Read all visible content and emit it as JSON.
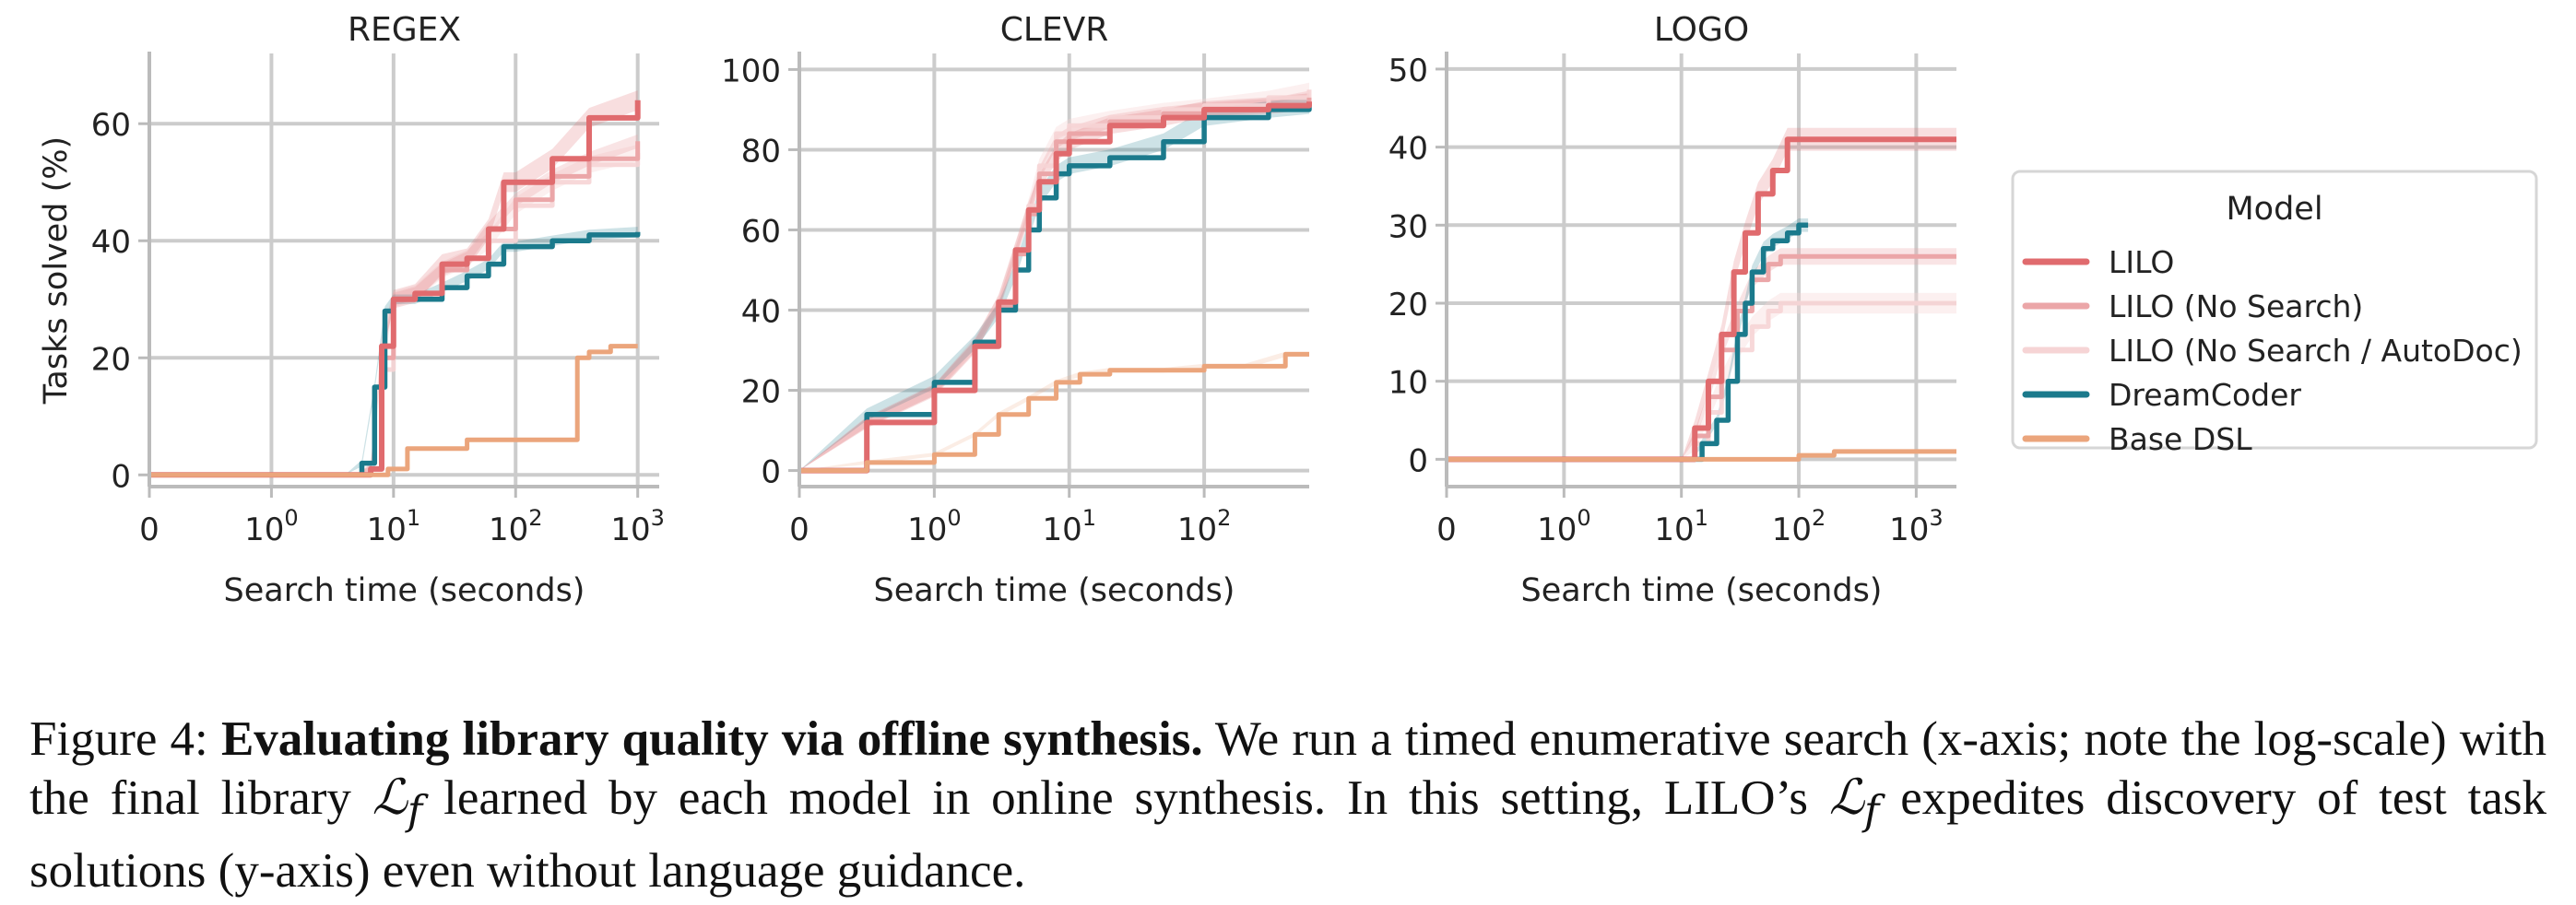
{
  "chart_data": [
    {
      "type": "line",
      "title": "REGEX",
      "xlabel": "Search time (seconds)",
      "ylabel": "Tasks solved (%)",
      "xscale": "symlog",
      "xlim": [
        0,
        1500
      ],
      "ylim": [
        -2,
        72
      ],
      "xticks": [
        {
          "v": 0,
          "base": "0",
          "exp": ""
        },
        {
          "v": 1,
          "base": "10",
          "exp": "0"
        },
        {
          "v": 10,
          "base": "10",
          "exp": "1"
        },
        {
          "v": 100,
          "base": "10",
          "exp": "2"
        },
        {
          "v": 1000,
          "base": "10",
          "exp": "3"
        }
      ],
      "yticks": [
        0,
        20,
        40,
        60
      ],
      "grid": true,
      "series": [
        {
          "name": "LILO (No Search / AutoDoc)",
          "x": [
            0,
            5,
            6.5,
            8,
            10,
            15,
            25,
            40,
            60,
            100,
            200,
            400,
            1000
          ],
          "y": [
            0,
            0,
            1,
            18,
            30,
            31,
            35,
            37,
            40,
            46,
            50,
            53,
            55
          ],
          "band": 4
        },
        {
          "name": "LILO (No Search)",
          "x": [
            0,
            5,
            6.5,
            8,
            10,
            15,
            25,
            40,
            60,
            100,
            200,
            400,
            1000
          ],
          "y": [
            0,
            0,
            1,
            20,
            30,
            31,
            35,
            37,
            42,
            47,
            51,
            54,
            57
          ],
          "band": 3
        },
        {
          "name": "DreamCoder",
          "x": [
            0,
            4,
            5.5,
            7,
            8.5,
            10,
            15,
            25,
            40,
            60,
            80,
            100,
            200,
            400,
            1000
          ],
          "y": [
            0,
            0,
            2,
            15,
            28,
            30,
            30,
            32,
            34,
            36,
            39,
            39,
            40,
            41,
            41.5
          ],
          "band": 2
        },
        {
          "name": "LILO",
          "x": [
            0,
            5,
            6.5,
            8,
            10,
            15,
            25,
            40,
            60,
            80,
            100,
            200,
            400,
            1000
          ],
          "y": [
            0,
            0,
            1,
            22,
            30,
            31,
            36,
            37,
            42,
            50,
            50,
            54,
            61,
            64
          ],
          "band": 5
        },
        {
          "name": "Base DSL",
          "x": [
            0,
            6,
            9,
            13,
            25,
            40,
            80,
            150,
            250,
            320,
            400,
            600,
            1000
          ],
          "y": [
            0,
            0,
            1,
            4.5,
            4.5,
            6,
            6,
            6,
            6,
            20,
            21,
            22,
            22
          ],
          "band": 0
        }
      ]
    },
    {
      "type": "line",
      "title": "CLEVR",
      "xlabel": "Search time (seconds)",
      "ylabel": "",
      "xscale": "symlog",
      "xlim": [
        0,
        600
      ],
      "ylim": [
        -4,
        104
      ],
      "xticks": [
        {
          "v": 0,
          "base": "0",
          "exp": ""
        },
        {
          "v": 1,
          "base": "10",
          "exp": "0"
        },
        {
          "v": 10,
          "base": "10",
          "exp": "1"
        },
        {
          "v": 100,
          "base": "10",
          "exp": "2"
        }
      ],
      "yticks": [
        0,
        20,
        40,
        60,
        80,
        100
      ],
      "grid": true,
      "series": [
        {
          "name": "LILO (No Search / AutoDoc)",
          "x": [
            0,
            0.5,
            1,
            2,
            3,
            4,
            5,
            6,
            8,
            10,
            20,
            50,
            100,
            300,
            600
          ],
          "y": [
            0,
            12,
            20,
            32,
            42,
            55,
            66,
            76,
            84,
            86,
            88,
            90,
            91,
            93,
            95
          ],
          "band": 3
        },
        {
          "name": "LILO (No Search)",
          "x": [
            0,
            0.5,
            1,
            2,
            3,
            4,
            5,
            6,
            8,
            10,
            20,
            50,
            100,
            300,
            600
          ],
          "y": [
            0,
            12,
            20,
            31,
            41,
            54,
            64,
            74,
            82,
            84,
            87,
            89,
            90,
            91,
            93
          ],
          "band": 3
        },
        {
          "name": "DreamCoder",
          "x": [
            0,
            0.5,
            1,
            2,
            3,
            4,
            5,
            6,
            8,
            10,
            20,
            50,
            100,
            300,
            600
          ],
          "y": [
            0,
            14,
            22,
            32,
            40,
            50,
            60,
            68,
            74,
            76,
            78,
            82,
            88,
            90,
            91
          ],
          "band": 4
        },
        {
          "name": "LILO",
          "x": [
            0,
            0.5,
            1,
            2,
            3,
            4,
            5,
            6,
            8,
            10,
            20,
            50,
            100,
            300,
            600
          ],
          "y": [
            0,
            12,
            20,
            31,
            42,
            55,
            65,
            72,
            79,
            82,
            86,
            88,
            90,
            91,
            92
          ],
          "band": 4
        },
        {
          "name": "Base DSL",
          "x": [
            0,
            0.5,
            1,
            2,
            3,
            5,
            8,
            12,
            20,
            50,
            100,
            200,
            400,
            600
          ],
          "y": [
            0,
            2,
            4,
            9,
            14,
            18,
            22,
            24,
            25,
            25,
            26,
            26,
            29,
            29
          ],
          "band": 1
        }
      ]
    },
    {
      "type": "line",
      "title": "LOGO",
      "xlabel": "Search time (seconds)",
      "ylabel": "",
      "xscale": "symlog",
      "xlim": [
        0,
        2200
      ],
      "ylim": [
        -3.5,
        52
      ],
      "xticks": [
        {
          "v": 0,
          "base": "0",
          "exp": ""
        },
        {
          "v": 1,
          "base": "10",
          "exp": "0"
        },
        {
          "v": 10,
          "base": "10",
          "exp": "1"
        },
        {
          "v": 100,
          "base": "10",
          "exp": "2"
        },
        {
          "v": 1000,
          "base": "10",
          "exp": "3"
        }
      ],
      "yticks": [
        0,
        10,
        20,
        30,
        40,
        50
      ],
      "grid": true,
      "series": [
        {
          "name": "LILO (No Search / AutoDoc)",
          "x": [
            0,
            10,
            13,
            17,
            22,
            30,
            40,
            55,
            70,
            100,
            200,
            500,
            2200
          ],
          "y": [
            0,
            0,
            2,
            6,
            10,
            14,
            17,
            19,
            20,
            20,
            20,
            20,
            20
          ],
          "band": 6
        },
        {
          "name": "LILO (No Search)",
          "x": [
            0,
            10,
            13,
            17,
            22,
            30,
            40,
            55,
            70,
            100,
            200,
            500,
            2200
          ],
          "y": [
            0,
            0,
            3,
            8,
            14,
            19,
            23,
            25,
            26,
            26,
            26,
            26,
            26
          ],
          "band": 4
        },
        {
          "name": "DreamCoder",
          "x": [
            0,
            12,
            15,
            20,
            25,
            30,
            35,
            40,
            50,
            60,
            80,
            100,
            120
          ],
          "y": [
            0,
            0,
            2,
            5,
            10,
            16,
            20,
            24,
            27,
            28,
            29,
            30,
            30
          ],
          "band": 3
        },
        {
          "name": "LILO",
          "x": [
            0,
            10,
            13,
            17,
            22,
            28,
            35,
            45,
            60,
            80,
            100,
            200,
            500,
            2200
          ],
          "y": [
            0,
            0,
            4,
            10,
            16,
            24,
            29,
            34,
            37,
            41,
            41,
            41,
            41,
            41
          ],
          "band": 6
        },
        {
          "name": "Base DSL",
          "x": [
            0,
            60,
            100,
            200,
            500,
            2200
          ],
          "y": [
            0,
            0,
            0.5,
            1,
            1,
            1
          ],
          "band": 0
        }
      ]
    }
  ],
  "legend": {
    "title": "Model",
    "placement": "right",
    "entries": [
      {
        "name": "LILO",
        "color": "#e06b6e"
      },
      {
        "name": "LILO (No Search)",
        "color": "#eba6a8"
      },
      {
        "name": "LILO (No Search / AutoDoc)",
        "color": "#f6d4d5"
      },
      {
        "name": "DreamCoder",
        "color": "#1b7a8c"
      },
      {
        "name": "Base DSL",
        "color": "#eba57c"
      }
    ]
  },
  "colors": {
    "LILO": "#e06b6e",
    "LILO (No Search)": "#eba6a8",
    "LILO (No Search / AutoDoc)": "#f6d4d5",
    "DreamCoder": "#1b7a8c",
    "Base DSL": "#eba57c",
    "grid": "#cccccc",
    "axis": "#bbbbbb"
  },
  "caption": {
    "label": "Figure 4:",
    "bold": "Evaluating library quality via offline synthesis.",
    "part1": " We run a timed enumerative search (x-axis; note the log-scale) with the final library ",
    "math1": "ℒ",
    "sub1": "f",
    "part2": " learned by each model in online synthesis. In this setting, ",
    "smallcaps": "LILO",
    "part3": "’s ",
    "math2": "ℒ",
    "sub2": "f",
    "part4": " expedites discovery of test task solutions (y-axis) even without language guidance."
  }
}
